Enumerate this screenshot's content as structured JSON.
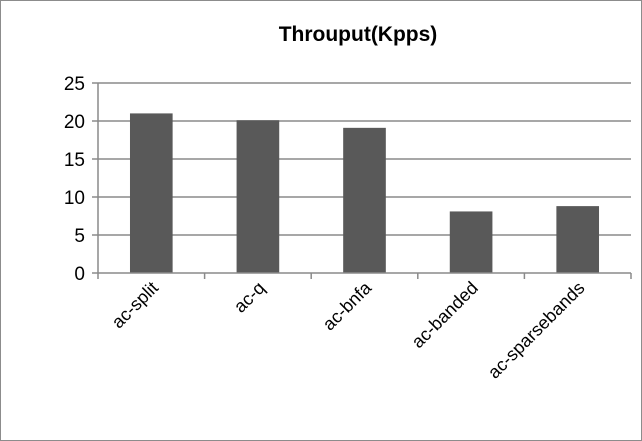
{
  "chart_data": {
    "type": "bar",
    "title": "Throuput(Kpps)",
    "xlabel": "",
    "ylabel": "",
    "categories": [
      "ac-split",
      "ac-q",
      "ac-bnfa",
      "ac-banded",
      "ac-sparsebands"
    ],
    "values": [
      21.0,
      20.1,
      19.1,
      8.1,
      8.8
    ],
    "ylim": [
      0,
      25
    ],
    "yticks": [
      0,
      5,
      10,
      15,
      20,
      25
    ],
    "grid": true,
    "legend": "none",
    "colors": {
      "bar": "#595959",
      "grid": "#8a8a8a",
      "axis": "#8a8a8a"
    }
  }
}
